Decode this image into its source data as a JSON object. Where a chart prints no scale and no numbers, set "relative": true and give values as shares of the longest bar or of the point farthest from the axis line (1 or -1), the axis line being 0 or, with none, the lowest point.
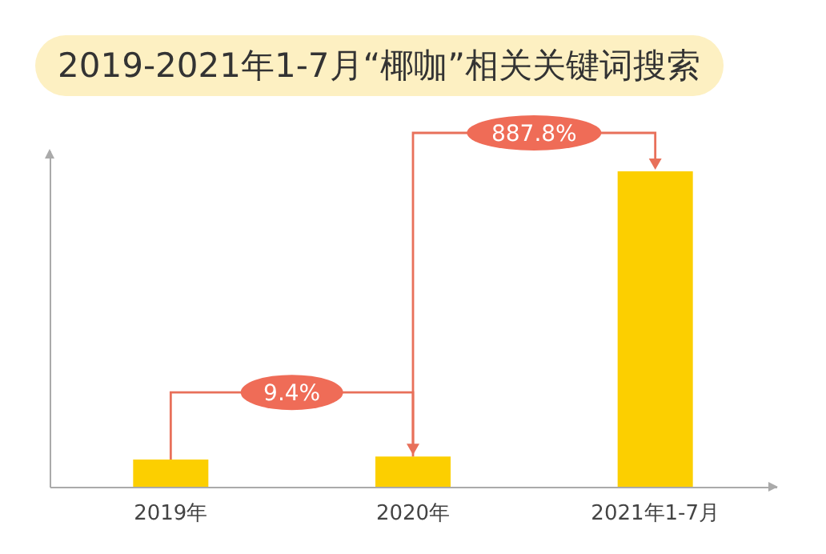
{
  "chart_data": {
    "type": "bar",
    "title": "2019-2021年1-7月“椰咖”相关关键词搜索",
    "categories": [
      "2019年",
      "2020年",
      "2021年1-7月"
    ],
    "values": [
      0.086,
      0.096,
      1
    ],
    "relative": true,
    "color": "#fccf00",
    "annotations": [
      "9.4%",
      "887.8%"
    ]
  }
}
